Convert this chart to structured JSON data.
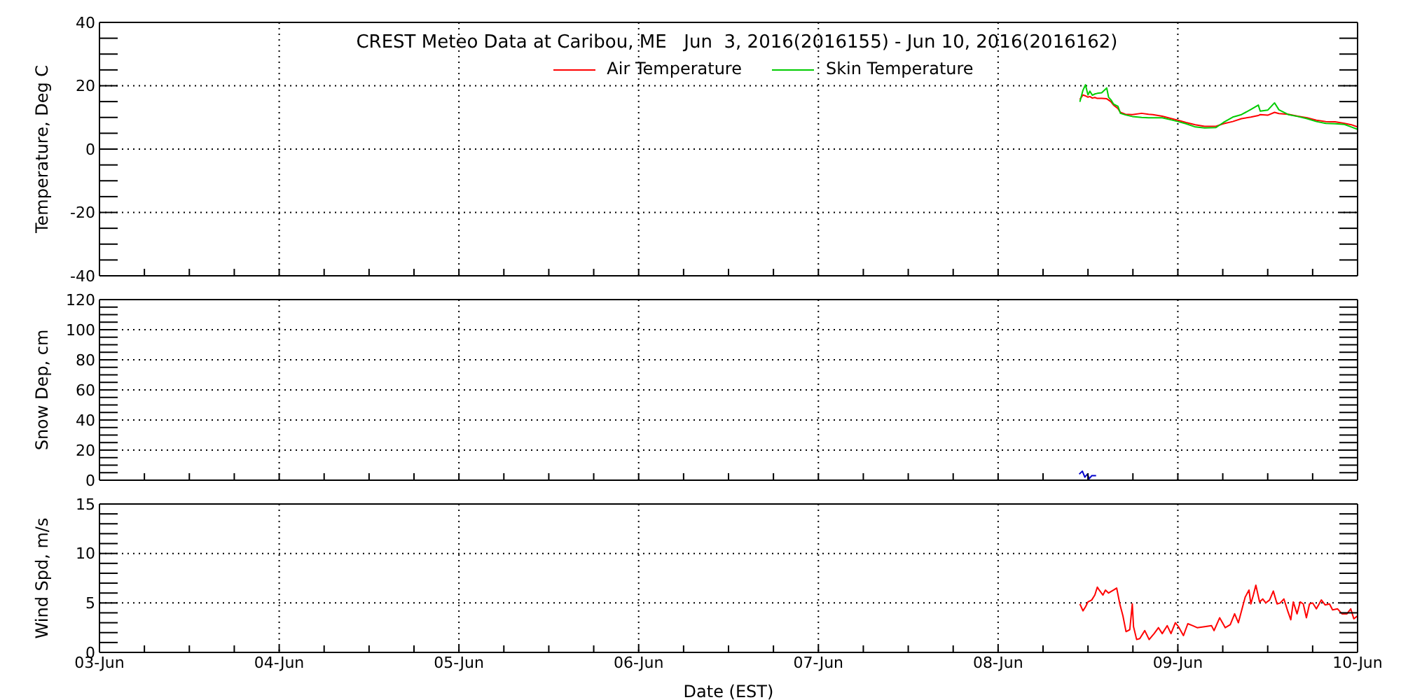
{
  "chart_data": [
    {
      "type": "line",
      "title": "CREST Meteo Data at Caribou, ME   Jun  3, 2016(2016155) - Jun 10, 2016(2016162)",
      "ylabel": "Temperature, Deg C",
      "x": [
        "2016-06-08T10:55",
        "2016-06-08T11:20",
        "2016-06-08T11:40",
        "2016-06-08T12:00",
        "2016-06-08T12:15",
        "2016-06-08T12:35",
        "2016-06-08T12:55",
        "2016-06-08T13:15",
        "2016-06-08T13:50",
        "2016-06-08T14:30",
        "2016-06-08T14:45",
        "2016-06-08T15:05",
        "2016-06-08T15:25",
        "2016-06-08T16:00",
        "2016-06-08T16:20",
        "2016-06-08T17:00",
        "2016-06-08T17:55",
        "2016-06-08T19:10",
        "2016-06-08T20:05",
        "2016-06-08T20:40",
        "2016-06-08T21:55",
        "2016-06-08T23:10",
        "2016-06-09T00:00",
        "2016-06-09T01:05",
        "2016-06-09T02:20",
        "2016-06-09T03:35",
        "2016-06-09T05:05",
        "2016-06-09T06:05",
        "2016-06-09T07:20",
        "2016-06-09T08:30",
        "2016-06-09T09:45",
        "2016-06-09T10:45",
        "2016-06-09T11:00",
        "2016-06-09T12:00",
        "2016-06-09T12:55",
        "2016-06-09T13:30",
        "2016-06-09T14:45",
        "2016-06-09T16:00",
        "2016-06-09T17:15",
        "2016-06-09T18:30",
        "2016-06-09T19:45",
        "2016-06-09T21:00",
        "2016-06-09T22:15",
        "2016-06-09T23:10",
        "2016-06-10T00:00"
      ],
      "series": [
        {
          "name": "Air Temperature",
          "color": "#ff0000",
          "values": [
            15.7,
            17.1,
            16.8,
            16.4,
            16.6,
            16.1,
            16.3,
            16.0,
            16.0,
            15.9,
            15.5,
            14.9,
            13.9,
            12.8,
            11.6,
            11.0,
            10.9,
            11.3,
            11.0,
            10.9,
            10.4,
            9.6,
            9.1,
            8.4,
            7.7,
            7.2,
            7.2,
            8.0,
            8.7,
            9.6,
            10.1,
            10.6,
            10.9,
            10.7,
            11.6,
            11.2,
            11.0,
            10.4,
            9.9,
            9.1,
            8.7,
            8.6,
            8.1,
            7.7,
            7.0
          ]
        },
        {
          "name": "Skin Temperature",
          "color": "#00cc00",
          "values": [
            14.9,
            18.6,
            20.3,
            17.1,
            18.3,
            17.0,
            17.4,
            17.6,
            17.8,
            19.3,
            16.4,
            15.5,
            14.2,
            13.5,
            11.3,
            10.8,
            10.3,
            10.0,
            9.9,
            9.9,
            9.9,
            9.2,
            8.7,
            8.0,
            7.0,
            6.7,
            6.8,
            8.4,
            10.1,
            10.9,
            12.5,
            13.9,
            12.0,
            12.3,
            14.6,
            12.4,
            10.9,
            10.3,
            9.6,
            8.7,
            8.1,
            8.0,
            7.8,
            7.0,
            6.2
          ]
        }
      ],
      "xlim": [
        "2016-06-03T00:00",
        "2016-06-10T00:00"
      ],
      "xticks": [
        {
          "value": "2016-06-03T00:00",
          "label": null
        },
        {
          "value": "2016-06-03T06:00",
          "label": null
        },
        {
          "value": "2016-06-03T12:00",
          "label": null
        },
        {
          "value": "2016-06-03T18:00",
          "label": null
        },
        {
          "value": "2016-06-04T00:00",
          "label": null
        },
        {
          "value": "2016-06-04T06:00",
          "label": null
        },
        {
          "value": "2016-06-04T12:00",
          "label": null
        },
        {
          "value": "2016-06-04T18:00",
          "label": null
        },
        {
          "value": "2016-06-05T00:00",
          "label": null
        },
        {
          "value": "2016-06-05T06:00",
          "label": null
        },
        {
          "value": "2016-06-05T12:00",
          "label": null
        },
        {
          "value": "2016-06-05T18:00",
          "label": null
        },
        {
          "value": "2016-06-06T00:00",
          "label": null
        },
        {
          "value": "2016-06-06T06:00",
          "label": null
        },
        {
          "value": "2016-06-06T12:00",
          "label": null
        },
        {
          "value": "2016-06-06T18:00",
          "label": null
        },
        {
          "value": "2016-06-07T00:00",
          "label": null
        },
        {
          "value": "2016-06-07T06:00",
          "label": null
        },
        {
          "value": "2016-06-07T12:00",
          "label": null
        },
        {
          "value": "2016-06-07T18:00",
          "label": null
        },
        {
          "value": "2016-06-08T00:00",
          "label": null
        },
        {
          "value": "2016-06-08T06:00",
          "label": null
        },
        {
          "value": "2016-06-08T12:00",
          "label": null
        },
        {
          "value": "2016-06-08T18:00",
          "label": null
        },
        {
          "value": "2016-06-09T00:00",
          "label": null
        },
        {
          "value": "2016-06-09T06:00",
          "label": null
        },
        {
          "value": "2016-06-09T12:00",
          "label": null
        },
        {
          "value": "2016-06-09T18:00",
          "label": null
        },
        {
          "value": "2016-06-10T00:00",
          "label": null
        }
      ],
      "ylim": [
        -40,
        40
      ],
      "yticks": [
        -40,
        {
          "value": -35,
          "label": null
        },
        {
          "value": -30,
          "label": null
        },
        {
          "value": -25,
          "label": null
        },
        -20,
        {
          "value": -15,
          "label": null
        },
        {
          "value": -10,
          "label": null
        },
        {
          "value": -5,
          "label": null
        },
        0,
        {
          "value": 5,
          "label": null
        },
        {
          "value": 10,
          "label": null
        },
        {
          "value": 15,
          "label": null
        },
        20,
        {
          "value": 25,
          "label": null
        },
        {
          "value": 30,
          "label": null
        },
        {
          "value": 35,
          "label": null
        },
        40
      ],
      "grid": true,
      "legend": "top",
      "tick_labels": "y"
    },
    {
      "type": "line",
      "ylabel": "Snow Dep, cm",
      "x": [
        "2016-06-08T10:50",
        "2016-06-08T11:15",
        "2016-06-08T11:35",
        "2016-06-08T11:55",
        "2016-06-08T12:10",
        "2016-06-08T12:30",
        "2016-06-08T13:05"
      ],
      "series": [
        {
          "color": "#0000cc",
          "values": [
            4,
            6,
            2,
            4,
            1,
            3,
            3
          ]
        }
      ],
      "xlim": [
        "2016-06-03T00:00",
        "2016-06-10T00:00"
      ],
      "xticks": [
        {
          "value": "2016-06-03T00:00",
          "label": null
        },
        {
          "value": "2016-06-03T06:00",
          "label": null
        },
        {
          "value": "2016-06-03T12:00",
          "label": null
        },
        {
          "value": "2016-06-03T18:00",
          "label": null
        },
        {
          "value": "2016-06-04T00:00",
          "label": null
        },
        {
          "value": "2016-06-04T06:00",
          "label": null
        },
        {
          "value": "2016-06-04T12:00",
          "label": null
        },
        {
          "value": "2016-06-04T18:00",
          "label": null
        },
        {
          "value": "2016-06-05T00:00",
          "label": null
        },
        {
          "value": "2016-06-05T06:00",
          "label": null
        },
        {
          "value": "2016-06-05T12:00",
          "label": null
        },
        {
          "value": "2016-06-05T18:00",
          "label": null
        },
        {
          "value": "2016-06-06T00:00",
          "label": null
        },
        {
          "value": "2016-06-06T06:00",
          "label": null
        },
        {
          "value": "2016-06-06T12:00",
          "label": null
        },
        {
          "value": "2016-06-06T18:00",
          "label": null
        },
        {
          "value": "2016-06-07T00:00",
          "label": null
        },
        {
          "value": "2016-06-07T06:00",
          "label": null
        },
        {
          "value": "2016-06-07T12:00",
          "label": null
        },
        {
          "value": "2016-06-07T18:00",
          "label": null
        },
        {
          "value": "2016-06-08T00:00",
          "label": null
        },
        {
          "value": "2016-06-08T06:00",
          "label": null
        },
        {
          "value": "2016-06-08T12:00",
          "label": null
        },
        {
          "value": "2016-06-08T18:00",
          "label": null
        },
        {
          "value": "2016-06-09T00:00",
          "label": null
        },
        {
          "value": "2016-06-09T06:00",
          "label": null
        },
        {
          "value": "2016-06-09T12:00",
          "label": null
        },
        {
          "value": "2016-06-09T18:00",
          "label": null
        },
        {
          "value": "2016-06-10T00:00",
          "label": null
        }
      ],
      "ylim": [
        0,
        120
      ],
      "yticks": [
        0,
        {
          "value": 5,
          "label": null
        },
        {
          "value": 10,
          "label": null
        },
        {
          "value": 15,
          "label": null
        },
        20,
        {
          "value": 25,
          "label": null
        },
        {
          "value": 30,
          "label": null
        },
        {
          "value": 35,
          "label": null
        },
        40,
        {
          "value": 45,
          "label": null
        },
        {
          "value": 50,
          "label": null
        },
        {
          "value": 55,
          "label": null
        },
        60,
        {
          "value": 65,
          "label": null
        },
        {
          "value": 70,
          "label": null
        },
        {
          "value": 75,
          "label": null
        },
        80,
        {
          "value": 85,
          "label": null
        },
        {
          "value": 90,
          "label": null
        },
        {
          "value": 95,
          "label": null
        },
        100,
        {
          "value": 105,
          "label": null
        },
        {
          "value": 110,
          "label": null
        },
        {
          "value": 115,
          "label": null
        },
        120
      ],
      "grid": true,
      "tick_labels": "y"
    },
    {
      "type": "line",
      "ylabel": "Wind Spd, m/s",
      "xlabel": "Date (EST)",
      "x": [
        "2016-06-08T10:55",
        "2016-06-08T11:20",
        "2016-06-08T11:40",
        "2016-06-08T12:00",
        "2016-06-08T12:30",
        "2016-06-08T12:55",
        "2016-06-08T13:15",
        "2016-06-08T13:30",
        "2016-06-08T14:00",
        "2016-06-08T14:20",
        "2016-06-08T14:45",
        "2016-06-08T15:25",
        "2016-06-08T15:50",
        "2016-06-08T16:15",
        "2016-06-08T16:40",
        "2016-06-08T17:05",
        "2016-06-08T17:35",
        "2016-06-08T17:55",
        "2016-06-08T18:05",
        "2016-06-08T18:30",
        "2016-06-08T18:55",
        "2016-06-08T19:35",
        "2016-06-08T20:10",
        "2016-06-08T20:50",
        "2016-06-08T21:25",
        "2016-06-08T21:55",
        "2016-06-08T22:35",
        "2016-06-08T23:05",
        "2016-06-08T23:40",
        "2016-06-09T00:05",
        "2016-06-09T00:45",
        "2016-06-09T01:20",
        "2016-06-09T02:00",
        "2016-06-09T02:35",
        "2016-06-09T03:35",
        "2016-06-09T04:30",
        "2016-06-09T04:50",
        "2016-06-09T05:35",
        "2016-06-09T06:20",
        "2016-06-09T07:00",
        "2016-06-09T07:35",
        "2016-06-09T08:05",
        "2016-06-09T08:30",
        "2016-06-09T09:00",
        "2016-06-09T09:30",
        "2016-06-09T09:45",
        "2016-06-09T10:05",
        "2016-06-09T10:25",
        "2016-06-09T10:55",
        "2016-06-09T11:20",
        "2016-06-09T11:45",
        "2016-06-09T12:15",
        "2016-06-09T12:45",
        "2016-06-09T13:15",
        "2016-06-09T13:40",
        "2016-06-09T14:10",
        "2016-06-09T14:40",
        "2016-06-09T15:05",
        "2016-06-09T15:25",
        "2016-06-09T15:55",
        "2016-06-09T16:20",
        "2016-06-09T16:45",
        "2016-06-09T17:10",
        "2016-06-09T17:35",
        "2016-06-09T18:00",
        "2016-06-09T18:30",
        "2016-06-09T19:10",
        "2016-06-09T19:40",
        "2016-06-09T20:15",
        "2016-06-09T20:40",
        "2016-06-09T21:20",
        "2016-06-09T21:55",
        "2016-06-09T22:35",
        "2016-06-09T23:05",
        "2016-06-09T23:30",
        "2016-06-10T00:00"
      ],
      "series": [
        {
          "color": "#ff0000",
          "values": [
            4.9,
            4.2,
            4.6,
            5.1,
            5.3,
            5.8,
            6.6,
            6.3,
            5.8,
            6.3,
            6.0,
            6.3,
            6.5,
            4.9,
            3.7,
            2.1,
            2.3,
            4.9,
            2.6,
            1.3,
            1.4,
            2.2,
            1.3,
            1.9,
            2.5,
            1.9,
            2.7,
            1.9,
            3.0,
            2.6,
            1.7,
            2.9,
            2.7,
            2.5,
            2.6,
            2.7,
            2.2,
            3.5,
            2.5,
            2.8,
            3.9,
            3.0,
            4.2,
            5.6,
            6.3,
            4.9,
            5.8,
            6.8,
            5.1,
            5.4,
            5.0,
            5.3,
            6.2,
            4.9,
            5.0,
            5.4,
            4.2,
            3.3,
            5.1,
            3.9,
            5.1,
            4.9,
            3.5,
            4.9,
            5.0,
            4.4,
            5.3,
            4.8,
            4.9,
            4.3,
            4.4,
            3.9,
            3.9,
            4.4,
            3.4,
            3.7
          ]
        }
      ],
      "xlim": [
        "2016-06-03T00:00",
        "2016-06-10T00:00"
      ],
      "xticks": [
        {
          "value": "2016-06-03T00:00",
          "label": "03-Jun"
        },
        {
          "value": "2016-06-03T06:00",
          "label": null
        },
        {
          "value": "2016-06-03T12:00",
          "label": null
        },
        {
          "value": "2016-06-03T18:00",
          "label": null
        },
        {
          "value": "2016-06-04T00:00",
          "label": "04-Jun"
        },
        {
          "value": "2016-06-04T06:00",
          "label": null
        },
        {
          "value": "2016-06-04T12:00",
          "label": null
        },
        {
          "value": "2016-06-04T18:00",
          "label": null
        },
        {
          "value": "2016-06-05T00:00",
          "label": "05-Jun"
        },
        {
          "value": "2016-06-05T06:00",
          "label": null
        },
        {
          "value": "2016-06-05T12:00",
          "label": null
        },
        {
          "value": "2016-06-05T18:00",
          "label": null
        },
        {
          "value": "2016-06-06T00:00",
          "label": "06-Jun"
        },
        {
          "value": "2016-06-06T06:00",
          "label": null
        },
        {
          "value": "2016-06-06T12:00",
          "label": null
        },
        {
          "value": "2016-06-06T18:00",
          "label": null
        },
        {
          "value": "2016-06-07T00:00",
          "label": "07-Jun"
        },
        {
          "value": "2016-06-07T06:00",
          "label": null
        },
        {
          "value": "2016-06-07T12:00",
          "label": null
        },
        {
          "value": "2016-06-07T18:00",
          "label": null
        },
        {
          "value": "2016-06-08T00:00",
          "label": "08-Jun"
        },
        {
          "value": "2016-06-08T06:00",
          "label": null
        },
        {
          "value": "2016-06-08T12:00",
          "label": null
        },
        {
          "value": "2016-06-08T18:00",
          "label": null
        },
        {
          "value": "2016-06-09T00:00",
          "label": "09-Jun"
        },
        {
          "value": "2016-06-09T06:00",
          "label": null
        },
        {
          "value": "2016-06-09T12:00",
          "label": null
        },
        {
          "value": "2016-06-09T18:00",
          "label": null
        },
        {
          "value": "2016-06-10T00:00",
          "label": "10-Jun"
        }
      ],
      "ylim": [
        0,
        15
      ],
      "yticks": [
        0,
        {
          "value": 1,
          "label": null
        },
        {
          "value": 2,
          "label": null
        },
        {
          "value": 3,
          "label": null
        },
        {
          "value": 4,
          "label": null
        },
        5,
        {
          "value": 6,
          "label": null
        },
        {
          "value": 7,
          "label": null
        },
        {
          "value": 8,
          "label": null
        },
        {
          "value": 9,
          "label": null
        },
        10,
        {
          "value": 11,
          "label": null
        },
        {
          "value": 12,
          "label": null
        },
        {
          "value": 13,
          "label": null
        },
        {
          "value": 14,
          "label": null
        },
        15
      ],
      "grid": true
    }
  ]
}
